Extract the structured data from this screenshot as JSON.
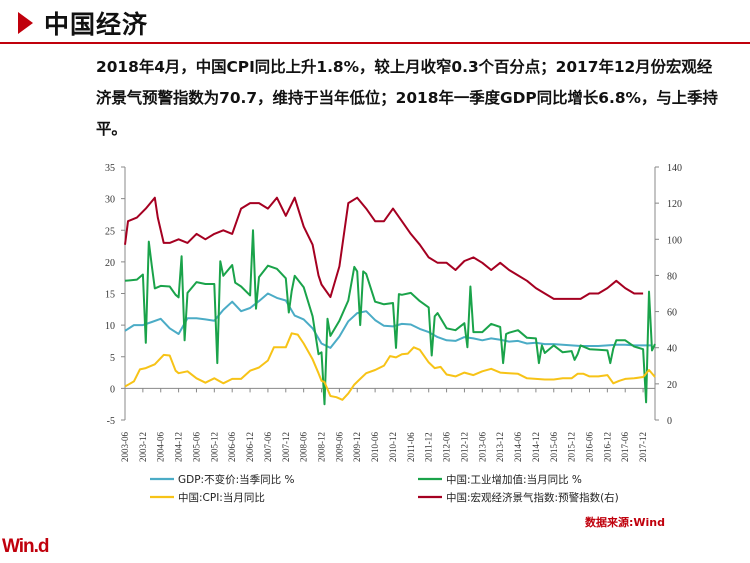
{
  "header": {
    "title": "中国经济"
  },
  "summary": "2018年4月，中国CPI同比上升1.8%，较上月收窄0.3个百分点；2017年12月份宏观经济景气预警指数为70.7，维持于当年低位；2018年一季度GDP同比增长6.8%，与上季持平。",
  "source": "数据来源:Wind",
  "logo": "Win.d",
  "colors": {
    "accent": "#c0000c",
    "gdp": "#4bacc6",
    "industry": "#1aa34a",
    "cpi": "#f7c317",
    "index": "#a50021"
  },
  "chart_data": {
    "type": "line",
    "y_left": {
      "lim": [
        -5,
        35
      ],
      "ticks": [
        -5,
        0,
        5,
        10,
        15,
        20,
        25,
        30,
        35
      ]
    },
    "y_right": {
      "lim": [
        0,
        140
      ],
      "ticks": [
        0,
        20,
        40,
        60,
        80,
        100,
        120,
        140
      ]
    },
    "x_ticks": [
      "2003-06",
      "2003-12",
      "2004-06",
      "2004-12",
      "2005-06",
      "2005-12",
      "2006-06",
      "2006-12",
      "2007-06",
      "2007-12",
      "2008-06",
      "2008-12",
      "2009-06",
      "2009-12",
      "2010-06",
      "2010-12",
      "2011-06",
      "2011-12",
      "2012-06",
      "2012-12",
      "2013-06",
      "2013-12",
      "2014-06",
      "2014-12",
      "2015-06",
      "2015-12",
      "2016-06",
      "2016-12",
      "2017-06",
      "2017-12"
    ],
    "x_range": [
      "2003-06",
      "2018-04"
    ],
    "grid": false,
    "legend_position": "bottom",
    "series": [
      {
        "name": "GDP:不变价:当季同比 %",
        "axis": "left",
        "color": "#4bacc6",
        "x": [
          "2003-06",
          "2003-09",
          "2003-12",
          "2004-03",
          "2004-06",
          "2004-09",
          "2004-12",
          "2005-03",
          "2005-06",
          "2005-09",
          "2005-12",
          "2006-03",
          "2006-06",
          "2006-09",
          "2006-12",
          "2007-03",
          "2007-06",
          "2007-09",
          "2007-12",
          "2008-03",
          "2008-06",
          "2008-09",
          "2008-12",
          "2009-03",
          "2009-06",
          "2009-09",
          "2009-12",
          "2010-03",
          "2010-06",
          "2010-09",
          "2010-12",
          "2011-03",
          "2011-06",
          "2011-09",
          "2011-12",
          "2012-03",
          "2012-06",
          "2012-09",
          "2012-12",
          "2013-03",
          "2013-06",
          "2013-09",
          "2013-12",
          "2014-03",
          "2014-06",
          "2014-09",
          "2014-12",
          "2015-03",
          "2015-06",
          "2015-09",
          "2015-12",
          "2016-03",
          "2016-06",
          "2016-09",
          "2016-12",
          "2017-03",
          "2017-06",
          "2017-09",
          "2017-12",
          "2018-03"
        ],
        "values": [
          9.1,
          10.0,
          10.0,
          10.5,
          11.0,
          9.5,
          8.6,
          11.1,
          11.1,
          10.9,
          10.7,
          12.4,
          13.7,
          12.2,
          12.7,
          13.8,
          15.0,
          14.3,
          13.9,
          11.5,
          10.9,
          9.5,
          7.1,
          6.4,
          8.2,
          10.6,
          11.9,
          12.2,
          10.8,
          9.9,
          9.8,
          10.2,
          10.1,
          9.4,
          8.9,
          8.1,
          7.6,
          7.5,
          8.1,
          7.9,
          7.6,
          7.9,
          7.7,
          7.4,
          7.5,
          7.1,
          7.2,
          7.0,
          7.0,
          6.9,
          6.8,
          6.7,
          6.7,
          6.7,
          6.8,
          6.9,
          6.9,
          6.8,
          6.8,
          6.8
        ]
      },
      {
        "name": "中国:工业增加值:当月同比 %",
        "axis": "left",
        "color": "#1aa34a",
        "x": [
          "2003-06",
          "2003-08",
          "2003-10",
          "2003-12",
          "2004-01",
          "2004-02",
          "2004-03",
          "2004-04",
          "2004-06",
          "2004-09",
          "2004-11",
          "2004-12",
          "2005-01",
          "2005-02",
          "2005-03",
          "2005-06",
          "2005-09",
          "2005-12",
          "2006-01",
          "2006-02",
          "2006-03",
          "2006-06",
          "2006-07",
          "2006-09",
          "2006-12",
          "2007-01",
          "2007-02",
          "2007-03",
          "2007-06",
          "2007-09",
          "2007-12",
          "2008-01",
          "2008-02",
          "2008-03",
          "2008-06",
          "2008-09",
          "2008-11",
          "2008-12",
          "2009-01",
          "2009-02",
          "2009-03",
          "2009-06",
          "2009-09",
          "2009-11",
          "2009-12",
          "2010-01",
          "2010-02",
          "2010-03",
          "2010-06",
          "2010-09",
          "2010-12",
          "2011-01",
          "2011-02",
          "2011-03",
          "2011-06",
          "2011-09",
          "2011-12",
          "2012-01",
          "2012-02",
          "2012-03",
          "2012-06",
          "2012-09",
          "2012-12",
          "2013-01",
          "2013-02",
          "2013-03",
          "2013-06",
          "2013-09",
          "2013-12",
          "2014-01",
          "2014-02",
          "2014-03",
          "2014-06",
          "2014-09",
          "2014-12",
          "2015-01",
          "2015-02",
          "2015-03",
          "2015-06",
          "2015-09",
          "2015-12",
          "2016-01",
          "2016-02",
          "2016-03",
          "2016-06",
          "2016-09",
          "2016-12",
          "2017-01",
          "2017-02",
          "2017-03",
          "2017-06",
          "2017-09",
          "2017-12",
          "2018-01",
          "2018-02",
          "2018-03",
          "2018-04"
        ],
        "values": [
          17.0,
          17.1,
          17.2,
          18.0,
          7.2,
          23.2,
          19.4,
          15.8,
          16.2,
          16.1,
          14.8,
          14.4,
          20.9,
          7.6,
          15.1,
          16.8,
          16.5,
          16.5,
          4.0,
          20.1,
          17.8,
          19.5,
          16.7,
          16.1,
          14.7,
          25.0,
          12.6,
          17.6,
          19.4,
          18.9,
          17.4,
          12.0,
          15.4,
          17.8,
          16.0,
          11.4,
          5.4,
          5.7,
          -2.5,
          11.0,
          8.3,
          10.7,
          13.9,
          19.2,
          18.5,
          10.0,
          18.5,
          18.1,
          13.7,
          13.3,
          13.5,
          6.4,
          14.9,
          14.8,
          15.1,
          13.8,
          12.8,
          5.2,
          11.4,
          11.9,
          9.5,
          9.2,
          10.3,
          6.5,
          16.1,
          8.9,
          8.9,
          10.2,
          9.7,
          4.0,
          8.6,
          8.8,
          9.2,
          8.0,
          7.9,
          4.0,
          6.8,
          5.6,
          6.8,
          5.7,
          5.9,
          4.5,
          5.4,
          6.8,
          6.2,
          6.1,
          6.0,
          4.0,
          6.3,
          7.6,
          7.6,
          6.6,
          6.2,
          -2.2,
          15.3,
          6.0,
          7.0
        ]
      },
      {
        "name": "中国:CPI:当月同比",
        "axis": "left",
        "color": "#f7c317",
        "x": [
          "2003-06",
          "2003-09",
          "2003-11",
          "2004-01",
          "2004-04",
          "2004-07",
          "2004-09",
          "2004-11",
          "2004-12",
          "2005-03",
          "2005-06",
          "2005-09",
          "2005-12",
          "2006-03",
          "2006-06",
          "2006-09",
          "2006-12",
          "2007-03",
          "2007-06",
          "2007-08",
          "2007-10",
          "2007-12",
          "2008-02",
          "2008-04",
          "2008-06",
          "2008-09",
          "2008-11",
          "2008-12",
          "2009-01",
          "2009-03",
          "2009-05",
          "2009-07",
          "2009-09",
          "2009-11",
          "2010-01",
          "2010-03",
          "2010-06",
          "2010-09",
          "2010-11",
          "2011-01",
          "2011-03",
          "2011-05",
          "2011-07",
          "2011-09",
          "2011-12",
          "2012-02",
          "2012-04",
          "2012-06",
          "2012-09",
          "2012-12",
          "2013-03",
          "2013-06",
          "2013-09",
          "2013-12",
          "2014-03",
          "2014-06",
          "2014-09",
          "2014-12",
          "2015-03",
          "2015-06",
          "2015-09",
          "2015-12",
          "2016-02",
          "2016-04",
          "2016-06",
          "2016-09",
          "2016-12",
          "2017-02",
          "2017-04",
          "2017-06",
          "2017-09",
          "2017-12",
          "2018-02",
          "2018-04"
        ],
        "values": [
          0.3,
          1.1,
          3.0,
          3.2,
          3.8,
          5.3,
          5.2,
          2.8,
          2.4,
          2.7,
          1.6,
          0.9,
          1.6,
          0.8,
          1.5,
          1.5,
          2.8,
          3.3,
          4.4,
          6.5,
          6.5,
          6.5,
          8.7,
          8.5,
          7.1,
          4.6,
          2.4,
          1.2,
          1.0,
          -1.2,
          -1.4,
          -1.8,
          -0.8,
          0.6,
          1.5,
          2.4,
          2.9,
          3.6,
          5.1,
          4.9,
          5.4,
          5.5,
          6.5,
          6.1,
          4.1,
          3.2,
          3.4,
          2.2,
          1.9,
          2.5,
          2.1,
          2.7,
          3.1,
          2.5,
          2.4,
          2.3,
          1.6,
          1.5,
          1.4,
          1.4,
          1.6,
          1.6,
          2.3,
          2.3,
          1.9,
          1.9,
          2.1,
          0.8,
          1.2,
          1.5,
          1.6,
          1.8,
          2.9,
          1.8
        ]
      },
      {
        "name": "中国:宏观经济景气指数:预警指数(右)",
        "axis": "right",
        "color": "#a50021",
        "x": [
          "2003-06",
          "2003-07",
          "2003-10",
          "2004-01",
          "2004-04",
          "2004-05",
          "2004-07",
          "2004-09",
          "2004-12",
          "2005-03",
          "2005-06",
          "2005-09",
          "2005-12",
          "2006-03",
          "2006-06",
          "2006-09",
          "2006-12",
          "2007-03",
          "2007-06",
          "2007-09",
          "2007-12",
          "2008-03",
          "2008-06",
          "2008-09",
          "2008-11",
          "2008-12",
          "2009-03",
          "2009-06",
          "2009-09",
          "2009-12",
          "2010-03",
          "2010-06",
          "2010-09",
          "2010-12",
          "2011-03",
          "2011-06",
          "2011-09",
          "2011-12",
          "2012-03",
          "2012-06",
          "2012-09",
          "2012-12",
          "2013-03",
          "2013-06",
          "2013-09",
          "2013-12",
          "2014-03",
          "2014-06",
          "2014-09",
          "2014-12",
          "2015-03",
          "2015-06",
          "2015-09",
          "2015-12",
          "2016-03",
          "2016-06",
          "2016-09",
          "2016-12",
          "2017-03",
          "2017-06",
          "2017-09",
          "2017-12"
        ],
        "values": [
          97,
          110,
          112,
          117,
          123,
          112,
          98,
          98,
          100,
          98,
          103,
          100,
          103,
          105,
          103,
          117,
          120,
          120,
          117,
          123,
          113,
          123,
          107,
          97,
          80,
          75,
          68,
          85,
          120,
          123,
          117,
          110,
          110,
          117,
          110,
          103,
          97,
          90,
          87,
          87,
          83,
          88,
          90,
          87,
          83,
          87,
          83,
          80,
          77,
          73,
          70,
          67,
          67,
          67,
          67,
          70,
          70,
          73,
          77,
          73,
          70,
          70
        ]
      }
    ]
  }
}
